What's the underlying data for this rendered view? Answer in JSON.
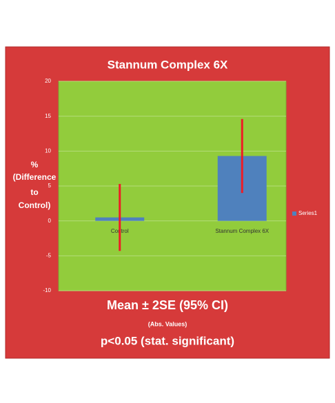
{
  "chart_data": {
    "type": "bar",
    "title": "Stannum Complex 6X",
    "y_label": [
      "%",
      "(Difference",
      "to",
      "Control)"
    ],
    "categories": [
      "Control",
      "Stannum Complex 6X"
    ],
    "series": [
      {
        "name": "Series1",
        "color": "#4f81bd",
        "values": [
          0.5,
          9.3
        ],
        "errors": [
          4.8,
          5.3
        ]
      }
    ],
    "error_color": "#ee1c25",
    "ylim": [
      -10,
      20
    ],
    "yticks": [
      -10,
      -5,
      0,
      5,
      10,
      15,
      20
    ],
    "grid": true,
    "legend": "right",
    "annotations": [
      "Mean ± 2SE  (95% CI)",
      "(Abs. Values)",
      "p<0.05 (stat. significant)"
    ]
  }
}
